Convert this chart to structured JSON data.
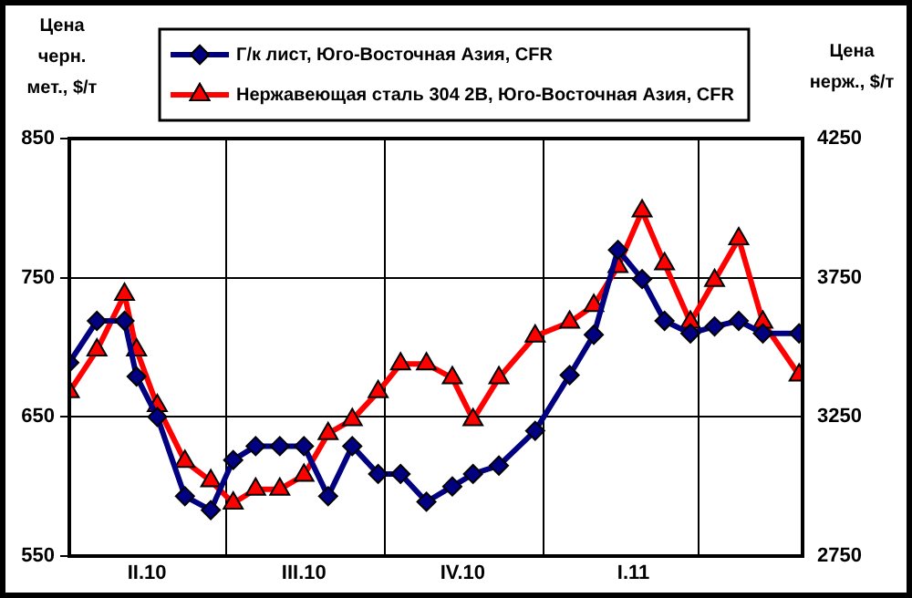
{
  "chart_data": {
    "type": "line",
    "ylabel": "Цена\nчерн.\nмет., $/т",
    "y2label": "Цена\nнерж., $/т",
    "x": [
      "2010-04-01",
      "2010-04-17",
      "2010-05-03",
      "2010-05-10",
      "2010-05-22",
      "2010-06-07",
      "2010-06-22",
      "2010-07-05",
      "2010-07-18",
      "2010-08-01",
      "2010-08-15",
      "2010-08-29",
      "2010-09-12",
      "2010-09-27",
      "2010-10-10",
      "2010-10-25",
      "2010-11-09",
      "2010-11-21",
      "2010-12-06",
      "2010-12-27",
      "2011-01-16",
      "2011-01-30",
      "2011-02-13",
      "2011-02-27",
      "2011-03-12",
      "2011-03-27",
      "2011-04-10",
      "2011-04-24",
      "2011-05-08",
      "2011-05-29"
    ],
    "series": [
      {
        "name": "Г/к лист, Юго-Восточная Азия, CFR",
        "color": "#000080",
        "marker": "diamond",
        "values": [
          689,
          719,
          719,
          679,
          650,
          593,
          583,
          619,
          629,
          629,
          629,
          593,
          629,
          609,
          609,
          589,
          600,
          609,
          615,
          640,
          680,
          709,
          770,
          749,
          719,
          710,
          715,
          719,
          710,
          710
        ]
      },
      {
        "name": "Нержавеющая сталь 304 2B, Юго-Восточная Азия, CFR",
        "color": "#ff0000",
        "marker": "triangle",
        "axis": "y2",
        "values": [
          3340,
          3490,
          3690,
          3490,
          3290,
          3090,
          3020,
          2940,
          2990,
          2990,
          3040,
          3190,
          3240,
          3340,
          3440,
          3440,
          3390,
          3240,
          3390,
          3540,
          3590,
          3650,
          3790,
          3990,
          3800,
          3590,
          3740,
          3890,
          3590,
          3400
        ]
      }
    ],
    "xlim": [
      "2010-04-01",
      "2011-05-31"
    ],
    "xticks": [
      {
        "value": "2010-07-01",
        "label": null
      },
      {
        "value": "2010-10-01",
        "label": null
      },
      {
        "value": "2011-01-01",
        "label": null
      },
      {
        "value": "2011-04-01",
        "label": null
      },
      {
        "value": "2010-05-16",
        "label": "II.10"
      },
      {
        "value": "2010-08-15",
        "label": "III.10"
      },
      {
        "value": "2010-11-15",
        "label": "IV.10"
      },
      {
        "value": "2011-02-22",
        "label": "I.11"
      }
    ],
    "ylim": [
      550,
      850
    ],
    "yticks": [
      550,
      650,
      750,
      850
    ],
    "y2lim": [
      2750,
      4250
    ],
    "y2ticks": [
      2750,
      3250,
      3750,
      4250
    ],
    "grid": true,
    "legend": "top",
    "line_style": "solid"
  }
}
